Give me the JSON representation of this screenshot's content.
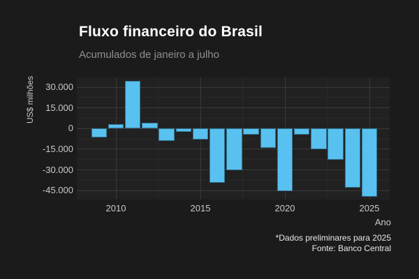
{
  "header": {
    "title": "Fluxo financeiro do Brasil",
    "subtitle": "Acumulados de janeiro a julho"
  },
  "footer": {
    "note": "*Dados preliminares para 2025",
    "source": "Fonte: Banco Central"
  },
  "colors": {
    "background": "#1b1b1b",
    "panel": "#212121",
    "bar": "#58c1ef",
    "grid_major": "#3a3a3a",
    "grid_minor": "#2a2a2a",
    "title_text": "#ffffff",
    "subtitle_text": "#8f8f8f",
    "tick_text": "#c9c9c9",
    "footer_text": "#e8e8e8"
  },
  "chart_data": {
    "type": "bar",
    "title": "Fluxo financeiro do Brasil",
    "subtitle": "Acumulados de janeiro a julho",
    "xlabel": "Ano",
    "ylabel": "US$ milhões",
    "categories": [
      2009,
      2010,
      2011,
      2012,
      2013,
      2014,
      2015,
      2016,
      2017,
      2018,
      2019,
      2020,
      2021,
      2022,
      2023,
      2024,
      2025
    ],
    "values": [
      -6300,
      3000,
      34400,
      4400,
      -8800,
      -2500,
      -7900,
      -39100,
      -30000,
      -4500,
      -14200,
      -45300,
      -4300,
      -15200,
      -22700,
      -43100,
      -49400
    ],
    "ylim": [
      -51500,
      37150
    ],
    "grid": true,
    "legend": false,
    "y_ticks": [
      {
        "value": 30000,
        "label": "30.000"
      },
      {
        "value": 15000,
        "label": "15.000"
      },
      {
        "value": 0,
        "label": "0"
      },
      {
        "value": -15000,
        "label": "-15.000"
      },
      {
        "value": -30000,
        "label": "-30.000"
      },
      {
        "value": -45000,
        "label": "-45.000"
      }
    ],
    "y_minor": [
      22500,
      7500,
      -7500,
      -22500,
      -37500
    ],
    "x_ticks": [
      {
        "value": 2010,
        "label": "2010"
      },
      {
        "value": 2015,
        "label": "2015"
      },
      {
        "value": 2020,
        "label": "2020"
      },
      {
        "value": 2025,
        "label": "2025"
      }
    ],
    "x_minor": [
      2012.5,
      2017.5,
      2022.5
    ],
    "annotations": [
      "*Dados preliminares para 2025",
      "Fonte: Banco Central"
    ]
  }
}
